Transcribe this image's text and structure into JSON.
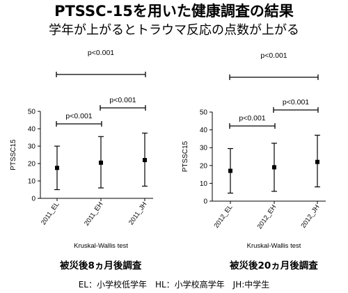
{
  "header": {
    "title": "PTSSC-15を用いた健康調査の結果",
    "subtitle": "学年が上がるとトラウマ反応の点数が上がる"
  },
  "footer": {
    "legend": "EL：小学校低学年　HL：小学校高学年　JH:中学生"
  },
  "colors": {
    "ink": "#000000",
    "marker": "#000000"
  },
  "chart_data": [
    {
      "type": "scatter",
      "title": "",
      "ylabel": "PTSSC15",
      "xlabel": "Kruskal-Wallis test",
      "caption": "被災後8ヵ月後調査",
      "categories": [
        "2011_EL",
        "2011_EH",
        "2011_JH"
      ],
      "series": [
        {
          "values": [
            17.5,
            20.5,
            22
          ],
          "error_low": [
            5,
            6,
            7
          ],
          "error_high": [
            30,
            35.5,
            37.5
          ]
        }
      ],
      "ylim": [
        0,
        50
      ],
      "yticks": [
        0,
        10,
        20,
        30,
        40,
        50
      ],
      "grid": false,
      "annotations": [
        {
          "label": "p<0.001",
          "from": 0,
          "to": 1
        },
        {
          "label": "p<0.001",
          "from": 1,
          "to": 2
        },
        {
          "label": "p<0.001",
          "from": 0,
          "to": 2
        }
      ]
    },
    {
      "type": "scatter",
      "title": "",
      "ylabel": "PTSSC15",
      "xlabel": "Kruskal-Wallis test",
      "caption": "被災後20ヵ月後調査",
      "categories": [
        "2012_EL",
        "2012_EH",
        "2012_JH"
      ],
      "series": [
        {
          "values": [
            17,
            19,
            22
          ],
          "error_low": [
            4.5,
            5.5,
            8
          ],
          "error_high": [
            29.5,
            32.5,
            37
          ]
        }
      ],
      "ylim": [
        0,
        50
      ],
      "yticks": [
        0,
        10,
        20,
        30,
        40,
        50
      ],
      "grid": false,
      "annotations": [
        {
          "label": "p<0.001",
          "from": 0,
          "to": 1
        },
        {
          "label": "p<0.001",
          "from": 1,
          "to": 2
        },
        {
          "label": "p<0.001",
          "from": 0,
          "to": 2
        }
      ]
    }
  ]
}
